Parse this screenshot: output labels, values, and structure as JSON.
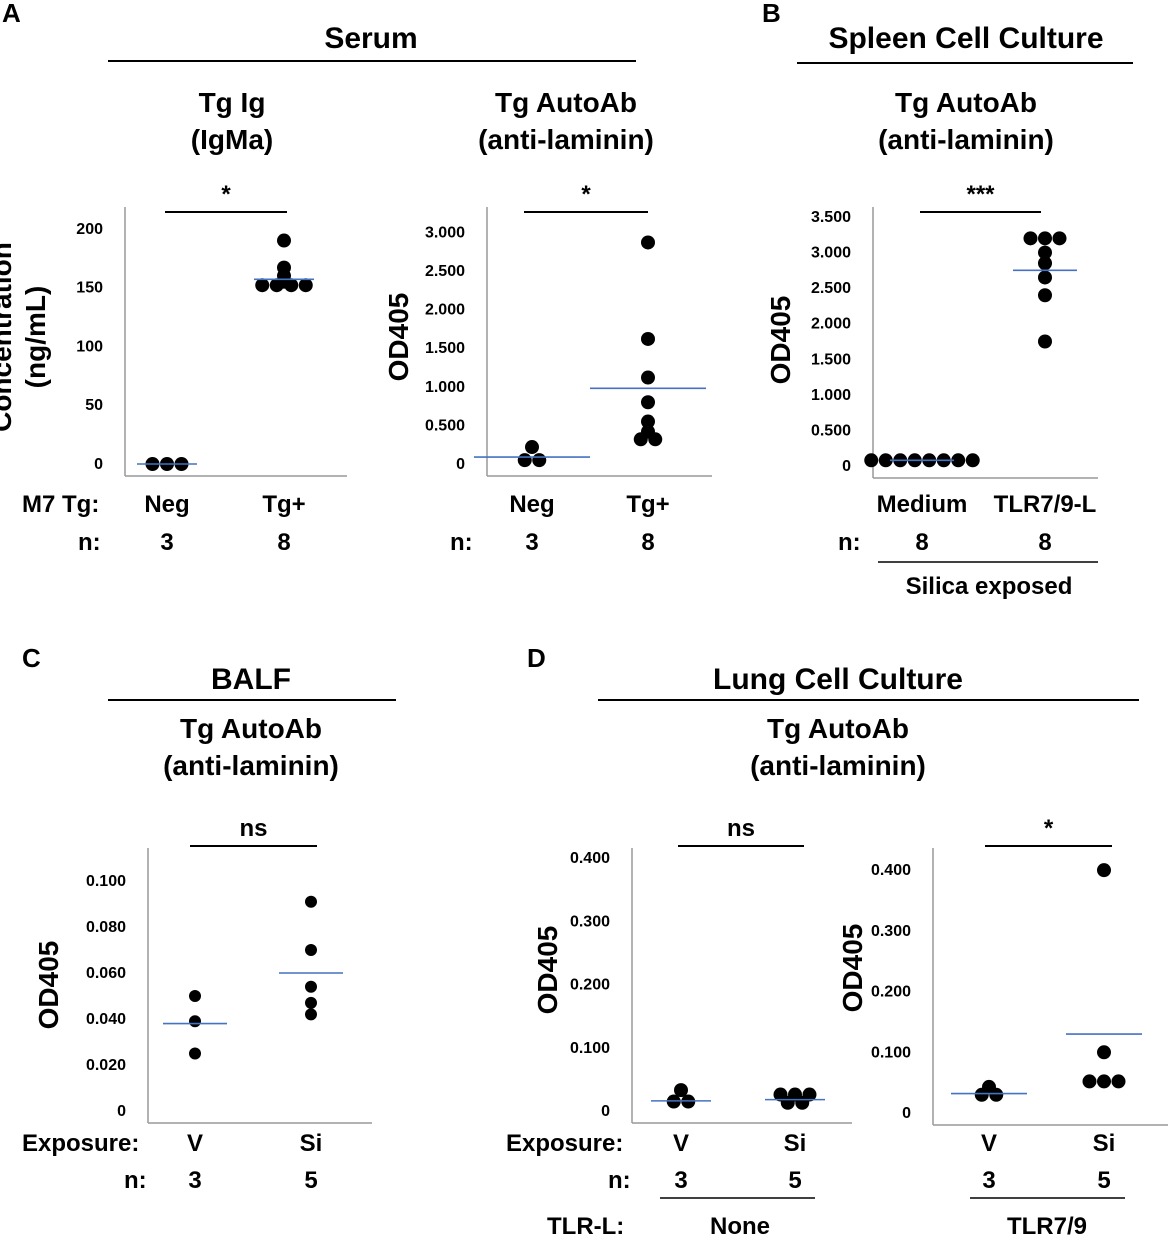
{
  "panel_letters": [
    "A",
    "B",
    "C",
    "D"
  ],
  "section_titles": {
    "A": "Serum",
    "B": "Spleen Cell Culture",
    "C": "BALF",
    "D": "Lung Cell Culture"
  },
  "row_labels": {
    "m7tg": "M7 Tg:",
    "n": "n:",
    "exposure": "Exposure:",
    "tlr_l": "TLR-L:"
  },
  "group_labels": {
    "silica_exposed": "Silica exposed",
    "none": "None",
    "tlr79": "TLR7/9"
  },
  "colors": {
    "points": "#000000",
    "mean_line": "#4472C4",
    "axis": "#999999"
  },
  "chart_data": [
    {
      "id": "A1",
      "type": "scatter",
      "title": [
        "Tg Ig",
        "(IgMa)"
      ],
      "ylabel": [
        "Concentration",
        "(ng/mL)"
      ],
      "ylim": [
        0,
        210
      ],
      "yticks": [
        0,
        50,
        100,
        150,
        200
      ],
      "ytick_labels": [
        "0",
        "50",
        "100",
        "150",
        "200"
      ],
      "categories": [
        "Neg",
        "Tg+"
      ],
      "n": [
        "3",
        "8"
      ],
      "significance": "*",
      "points": [
        [
          0,
          0,
          0
        ],
        [
          190,
          167,
          160,
          155,
          152,
          152,
          152,
          152
        ]
      ],
      "means": [
        0,
        157
      ]
    },
    {
      "id": "A2",
      "type": "scatter",
      "title": [
        "Tg AutoAb",
        "(anti-laminin)"
      ],
      "ylabel": [
        "OD405"
      ],
      "ylim": [
        0,
        3.2
      ],
      "yticks": [
        0,
        0.5,
        1.0,
        1.5,
        2.0,
        2.5,
        3.0
      ],
      "ytick_labels": [
        "0",
        "0.500",
        "1.000",
        "1.500",
        "2.000",
        "2.500",
        "3.000"
      ],
      "categories": [
        "Neg",
        "Tg+"
      ],
      "n": [
        "3",
        "8"
      ],
      "significance": "*",
      "points": [
        [
          0.22,
          0.05,
          0.05
        ],
        [
          2.87,
          1.62,
          1.12,
          0.8,
          0.55,
          0.42,
          0.32,
          0.32
        ]
      ],
      "means": [
        0.09,
        0.98
      ]
    },
    {
      "id": "B",
      "type": "scatter",
      "title": [
        "Tg AutoAb",
        "(anti-laminin)"
      ],
      "ylabel": [
        "OD405"
      ],
      "ylim": [
        0,
        3.5
      ],
      "yticks": [
        0,
        0.5,
        1.0,
        1.5,
        2.0,
        2.5,
        3.0,
        3.5
      ],
      "ytick_labels": [
        "0",
        "0.500",
        "1.000",
        "1.500",
        "2.000",
        "2.500",
        "3.000",
        "3.500"
      ],
      "categories": [
        "Medium",
        "TLR7/9-L"
      ],
      "n": [
        "8",
        "8"
      ],
      "significance": "***",
      "points": [
        [
          0.08,
          0.08,
          0.08,
          0.08,
          0.08,
          0.08,
          0.08,
          0.08
        ],
        [
          3.2,
          3.2,
          3.2,
          3.0,
          2.85,
          2.65,
          2.4,
          1.75
        ]
      ],
      "means": [
        0.08,
        2.75
      ]
    },
    {
      "id": "C",
      "type": "scatter",
      "title": [
        "Tg AutoAb",
        "(anti-laminin)"
      ],
      "ylabel": [
        "OD405"
      ],
      "ylim": [
        0,
        0.11
      ],
      "yticks": [
        0,
        0.02,
        0.04,
        0.06,
        0.08,
        0.1
      ],
      "ytick_labels": [
        "0",
        "0.020",
        "0.040",
        "0.060",
        "0.080",
        "0.100"
      ],
      "categories": [
        "V",
        "Si"
      ],
      "n": [
        "3",
        "5"
      ],
      "significance": "ns",
      "points": [
        [
          0.05,
          0.039,
          0.025
        ],
        [
          0.091,
          0.07,
          0.054,
          0.047,
          0.042
        ]
      ],
      "means": [
        0.038,
        0.06
      ]
    },
    {
      "id": "D1",
      "type": "scatter",
      "title": [
        "Tg AutoAb",
        "(anti-laminin)"
      ],
      "ylabel": [
        "OD405"
      ],
      "ylim": [
        0,
        0.4
      ],
      "yticks": [
        0,
        0.1,
        0.2,
        0.3,
        0.4
      ],
      "ytick_labels": [
        "0",
        "0.100",
        "0.200",
        "0.300",
        "0.400"
      ],
      "categories": [
        "V",
        "Si"
      ],
      "n": [
        "3",
        "5"
      ],
      "significance": "ns",
      "points": [
        [
          0.033,
          0.015,
          0.015
        ],
        [
          0.026,
          0.026,
          0.026,
          0.013,
          0.013
        ]
      ],
      "means": [
        0.016,
        0.018
      ]
    },
    {
      "id": "D2",
      "type": "scatter",
      "title": [
        "Tg AutoAb",
        "(anti-laminin)"
      ],
      "ylabel": [
        "OD405"
      ],
      "ylim": [
        0,
        0.42
      ],
      "yticks": [
        0,
        0.1,
        0.2,
        0.3,
        0.4
      ],
      "ytick_labels": [
        "0",
        "0.100",
        "0.200",
        "0.300",
        "0.400"
      ],
      "categories": [
        "V",
        "Si"
      ],
      "n": [
        "3",
        "5"
      ],
      "significance": "*",
      "points": [
        [
          0.043,
          0.03,
          0.03
        ],
        [
          0.4,
          0.1,
          0.052,
          0.052,
          0.052
        ]
      ],
      "means": [
        0.032,
        0.13
      ]
    }
  ]
}
